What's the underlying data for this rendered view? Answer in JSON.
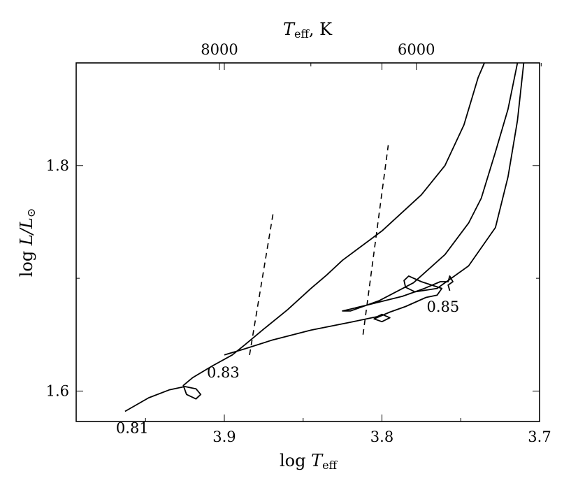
{
  "chart_data": {
    "type": "line",
    "xlabel_bottom_pre": "log ",
    "xlabel_bottom_var": "T",
    "xlabel_bottom_sub": "eff",
    "xlabel_top_var": "T",
    "xlabel_top_sub": "eff",
    "xlabel_top_post": ", K",
    "ylabel_pre": "log ",
    "ylabel_var": "L/L",
    "ylabel_sub": "⊙",
    "xlim": [
      3.994,
      3.7
    ],
    "ylim": [
      1.573,
      1.891
    ],
    "x_reversed": true,
    "x_ticks": [
      3.9,
      3.8,
      3.7
    ],
    "x_tick_labels": [
      "3.9",
      "3.8",
      "3.7"
    ],
    "x_minor_ticks": [
      3.95,
      3.85,
      3.75
    ],
    "y_ticks": [
      1.6,
      1.8
    ],
    "y_tick_labels": [
      "1.6",
      "1.8"
    ],
    "y_minor_ticks": [
      1.7
    ],
    "top_ticks_teff_K": [
      8000,
      6000
    ],
    "top_tick_labels": [
      "8000",
      "6000"
    ],
    "top_minor_ticks_teff_K": [
      7000,
      5000
    ],
    "grid": false,
    "series": [
      {
        "label": "0.81",
        "points": [
          [
            3.963,
            1.582
          ],
          [
            3.948,
            1.594
          ],
          [
            3.935,
            1.601
          ],
          [
            3.925,
            1.604
          ],
          [
            3.918,
            1.602
          ],
          [
            3.915,
            1.597
          ],
          [
            3.918,
            1.593
          ],
          [
            3.924,
            1.597
          ],
          [
            3.926,
            1.605
          ],
          [
            3.92,
            1.612
          ],
          [
            3.908,
            1.622
          ],
          [
            3.895,
            1.632
          ],
          [
            3.887,
            1.641
          ],
          [
            3.875,
            1.655
          ],
          [
            3.86,
            1.672
          ],
          [
            3.845,
            1.691
          ],
          [
            3.835,
            1.703
          ],
          [
            3.825,
            1.716
          ],
          [
            3.8,
            1.742
          ],
          [
            3.775,
            1.774
          ],
          [
            3.76,
            1.8
          ],
          [
            3.748,
            1.836
          ],
          [
            3.739,
            1.878
          ],
          [
            3.735,
            1.891
          ]
        ]
      },
      {
        "label": "0.83",
        "points": [
          [
            3.9,
            1.632
          ],
          [
            3.888,
            1.637
          ],
          [
            3.87,
            1.645
          ],
          [
            3.845,
            1.654
          ],
          [
            3.82,
            1.661
          ],
          [
            3.803,
            1.666
          ],
          [
            3.8,
            1.668
          ],
          [
            3.795,
            1.665
          ],
          [
            3.8,
            1.6615
          ],
          [
            3.805,
            1.664
          ],
          [
            3.795,
            1.67
          ],
          [
            3.785,
            1.675
          ],
          [
            3.772,
            1.683
          ],
          [
            3.765,
            1.685
          ],
          [
            3.762,
            1.691
          ],
          [
            3.775,
            1.697
          ],
          [
            3.783,
            1.702
          ],
          [
            3.786,
            1.698
          ],
          [
            3.785,
            1.692
          ],
          [
            3.779,
            1.688
          ],
          [
            3.765,
            1.691
          ],
          [
            3.745,
            1.711
          ],
          [
            3.728,
            1.745
          ],
          [
            3.72,
            1.79
          ],
          [
            3.714,
            1.84
          ],
          [
            3.71,
            1.891
          ]
        ]
      },
      {
        "label": "0.85",
        "points": [
          [
            3.757,
            1.689
          ],
          [
            3.758,
            1.694
          ],
          [
            3.755,
            1.697
          ],
          [
            3.757,
            1.702
          ],
          [
            3.758,
            1.697
          ],
          [
            3.763,
            1.697
          ],
          [
            3.773,
            1.691
          ],
          [
            3.787,
            1.684
          ],
          [
            3.81,
            1.676
          ],
          [
            3.825,
            1.671
          ],
          [
            3.82,
            1.671
          ],
          [
            3.802,
            1.68
          ],
          [
            3.78,
            1.696
          ],
          [
            3.76,
            1.721
          ],
          [
            3.745,
            1.749
          ],
          [
            3.737,
            1.771
          ],
          [
            3.728,
            1.812
          ],
          [
            3.72,
            1.85
          ],
          [
            3.714,
            1.891
          ]
        ]
      }
    ],
    "instability_strip_edges": [
      [
        [
          3.884,
          1.632
        ],
        [
          3.869,
          1.758
        ]
      ],
      [
        [
          3.812,
          1.65
        ],
        [
          3.796,
          1.818
        ]
      ]
    ]
  }
}
